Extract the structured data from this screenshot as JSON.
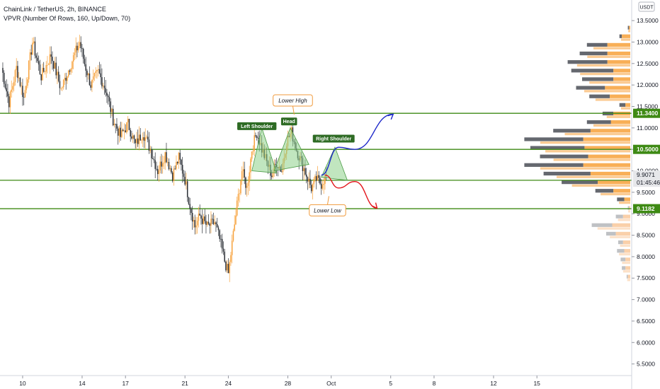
{
  "header": {
    "symbol_line": "ChainLink / TetherUS, 2h, BINANCE",
    "indicator_line": "VPVR (Number Of Rows, 160, Up/Down, 70)"
  },
  "chart_data": {
    "type": "candlestick",
    "currency": "USDT",
    "y_ticks": [
      "13.5000",
      "13.0000",
      "12.5000",
      "12.0000",
      "11.5000",
      "11.0000",
      "10.5000",
      "10.0000",
      "9.5000",
      "9.0000",
      "8.5000",
      "8.0000",
      "7.5000",
      "7.0000",
      "6.5000",
      "6.0000",
      "5.5000"
    ],
    "y_tick_values": [
      13.5,
      13.0,
      12.5,
      12.0,
      11.5,
      11.0,
      10.5,
      10.0,
      9.5,
      9.0,
      8.5,
      8.0,
      7.5,
      7.0,
      6.5,
      6.0,
      5.5
    ],
    "ylim": [
      5.23,
      13.98
    ],
    "x_ticks": [
      "10",
      "14",
      "17",
      "21",
      "24",
      "28",
      "Oct",
      "5",
      "8",
      "12",
      "15"
    ],
    "x_tick_bars": [
      17,
      65,
      100,
      148,
      183,
      231,
      266,
      314,
      349,
      397,
      432
    ],
    "levels": [
      {
        "value": 11.34,
        "label": "11.3400"
      },
      {
        "value": 10.5,
        "label": "10.5000"
      },
      {
        "value": 9.1182,
        "label": "9.1182"
      }
    ],
    "mid_line": 9.78,
    "last_price": {
      "value": 9.9071,
      "label": "9.9071",
      "countdown": "01:45:46"
    },
    "key_points": [
      {
        "bar": 0,
        "price": 12.4
      },
      {
        "bar": 6,
        "price": 11.6
      },
      {
        "bar": 12,
        "price": 12.4
      },
      {
        "bar": 18,
        "price": 11.7
      },
      {
        "bar": 25,
        "price": 13.0
      },
      {
        "bar": 32,
        "price": 12.2
      },
      {
        "bar": 40,
        "price": 12.7
      },
      {
        "bar": 48,
        "price": 11.9
      },
      {
        "bar": 56,
        "price": 12.5
      },
      {
        "bar": 63,
        "price": 13.0
      },
      {
        "bar": 67,
        "price": 12.5
      },
      {
        "bar": 72,
        "price": 12.0
      },
      {
        "bar": 78,
        "price": 12.3
      },
      {
        "bar": 84,
        "price": 11.9
      },
      {
        "bar": 90,
        "price": 11.2
      },
      {
        "bar": 96,
        "price": 10.8
      },
      {
        "bar": 102,
        "price": 11.1
      },
      {
        "bar": 108,
        "price": 10.6
      },
      {
        "bar": 114,
        "price": 10.9
      },
      {
        "bar": 120,
        "price": 10.5
      },
      {
        "bar": 126,
        "price": 10.0
      },
      {
        "bar": 132,
        "price": 10.4
      },
      {
        "bar": 138,
        "price": 9.9
      },
      {
        "bar": 143,
        "price": 10.3
      },
      {
        "bar": 148,
        "price": 9.8
      },
      {
        "bar": 152,
        "price": 9.2
      },
      {
        "bar": 156,
        "price": 8.7
      },
      {
        "bar": 160,
        "price": 8.95
      },
      {
        "bar": 166,
        "price": 8.7
      },
      {
        "bar": 172,
        "price": 8.8
      },
      {
        "bar": 176,
        "price": 8.4
      },
      {
        "bar": 180,
        "price": 7.9
      },
      {
        "bar": 183,
        "price": 7.6
      },
      {
        "bar": 186,
        "price": 8.3
      },
      {
        "bar": 190,
        "price": 9.2
      },
      {
        "bar": 194,
        "price": 10.0
      },
      {
        "bar": 198,
        "price": 9.6
      },
      {
        "bar": 202,
        "price": 10.5
      },
      {
        "bar": 206,
        "price": 10.9
      },
      {
        "bar": 210,
        "price": 10.5
      },
      {
        "bar": 214,
        "price": 10.2
      },
      {
        "bar": 218,
        "price": 9.9
      },
      {
        "bar": 222,
        "price": 10.2
      },
      {
        "bar": 226,
        "price": 10.0
      },
      {
        "bar": 230,
        "price": 10.7
      },
      {
        "bar": 234,
        "price": 10.9
      },
      {
        "bar": 238,
        "price": 10.5
      },
      {
        "bar": 242,
        "price": 10.2
      },
      {
        "bar": 246,
        "price": 9.9
      },
      {
        "bar": 250,
        "price": 9.6
      },
      {
        "bar": 254,
        "price": 9.8
      },
      {
        "bar": 258,
        "price": 9.7
      },
      {
        "bar": 262,
        "price": 9.9
      }
    ],
    "annotations": [
      {
        "name": "left-shoulder",
        "text": "Left Shoulder",
        "bar": 206,
        "price": 11.04
      },
      {
        "name": "head",
        "text": "Head",
        "bar": 232,
        "price": 11.15
      },
      {
        "name": "right-shoulder",
        "text": "Right Shoulder",
        "bar": 268,
        "price": 10.75
      },
      {
        "name": "lower-high",
        "text": "Lower High",
        "bar": 235,
        "price": 11.64
      },
      {
        "name": "lower-low",
        "text": "Lower Low",
        "bar": 263,
        "price": 9.08
      }
    ],
    "pattern_triangles": [
      [
        {
          "bar": 202,
          "price": 10.0
        },
        {
          "bar": 210,
          "price": 11.0
        },
        {
          "bar": 222,
          "price": 9.95
        }
      ],
      [
        {
          "bar": 220,
          "price": 10.0
        },
        {
          "bar": 233,
          "price": 11.0
        },
        {
          "bar": 248,
          "price": 10.15
        }
      ],
      [
        {
          "bar": 258,
          "price": 9.85
        },
        {
          "bar": 269,
          "price": 10.55
        },
        {
          "bar": 279,
          "price": 9.78
        }
      ]
    ],
    "projections": [
      {
        "name": "bullish-path",
        "color": "#1c27c9",
        "points": [
          {
            "bar": 258,
            "price": 9.9
          },
          {
            "bar": 272,
            "price": 10.55
          },
          {
            "bar": 285,
            "price": 10.5
          },
          {
            "bar": 316,
            "price": 11.32
          }
        ]
      },
      {
        "name": "bearish-path",
        "color": "#e3141a",
        "points": [
          {
            "bar": 261,
            "price": 9.9
          },
          {
            "bar": 272,
            "price": 9.6
          },
          {
            "bar": 285,
            "price": 9.75
          },
          {
            "bar": 303,
            "price": 9.13
          }
        ]
      }
    ],
    "volume_profile": {
      "rows": [
        {
          "price": 13.3,
          "up": 0.01,
          "down": 0.01
        },
        {
          "price": 13.1,
          "up": 0.07,
          "down": 0.02
        },
        {
          "price": 12.9,
          "up": 0.19,
          "down": 0.17
        },
        {
          "price": 12.7,
          "up": 0.19,
          "down": 0.23
        },
        {
          "price": 12.5,
          "up": 0.19,
          "down": 0.33
        },
        {
          "price": 12.3,
          "up": 0.14,
          "down": 0.35
        },
        {
          "price": 12.1,
          "up": 0.14,
          "down": 0.26
        },
        {
          "price": 11.9,
          "up": 0.21,
          "down": 0.24
        },
        {
          "price": 11.7,
          "up": 0.17,
          "down": 0.17
        },
        {
          "price": 11.5,
          "up": 0.04,
          "down": 0.05
        },
        {
          "price": 11.3,
          "up": 0.14,
          "down": 0.09
        },
        {
          "price": 11.1,
          "up": 0.16,
          "down": 0.2
        },
        {
          "price": 10.9,
          "up": 0.33,
          "down": 0.31
        },
        {
          "price": 10.7,
          "up": 0.39,
          "down": 0.49
        },
        {
          "price": 10.5,
          "up": 0.38,
          "down": 0.45
        },
        {
          "price": 10.3,
          "up": 0.35,
          "down": 0.4
        },
        {
          "price": 10.1,
          "up": 0.39,
          "down": 0.49
        },
        {
          "price": 9.9,
          "up": 0.33,
          "down": 0.39
        },
        {
          "price": 9.7,
          "up": 0.27,
          "down": 0.3
        },
        {
          "price": 9.5,
          "up": 0.14,
          "down": 0.15
        },
        {
          "price": 9.3,
          "up": 0.05,
          "down": 0.06
        },
        {
          "price": 9.1,
          "up": 0.01,
          "down": 0.01
        },
        {
          "price": 8.9,
          "up": 0.06,
          "down": 0.06
        },
        {
          "price": 8.7,
          "up": 0.15,
          "down": 0.17
        },
        {
          "price": 8.5,
          "up": 0.12,
          "down": 0.08
        },
        {
          "price": 8.3,
          "up": 0.06,
          "down": 0.04
        },
        {
          "price": 8.1,
          "up": 0.05,
          "down": 0.06
        },
        {
          "price": 7.9,
          "up": 0.04,
          "down": 0.04
        },
        {
          "price": 7.7,
          "up": 0.04,
          "down": 0.03
        },
        {
          "price": 7.5,
          "up": 0.02,
          "down": 0.01
        }
      ]
    },
    "colors": {
      "candle_up": "#f7a13a",
      "candle_down": "#2b2f36",
      "level_line": "#3e8a14",
      "level_label_bg": "#3e8a14",
      "pattern_fill": "#8ed28a",
      "pattern_stroke": "#4a9a45",
      "annotation_green_bg": "#2e6b24",
      "annotation_orange_border": "#f09a3c",
      "vp_up": "#f7a13a",
      "vp_down": "#4a4e56",
      "vp_up_dim": "#f9c89a",
      "vp_down_dim": "#b4b6ba",
      "last_price_bg": "#e6e7ea",
      "axis_text": "#131722"
    }
  }
}
